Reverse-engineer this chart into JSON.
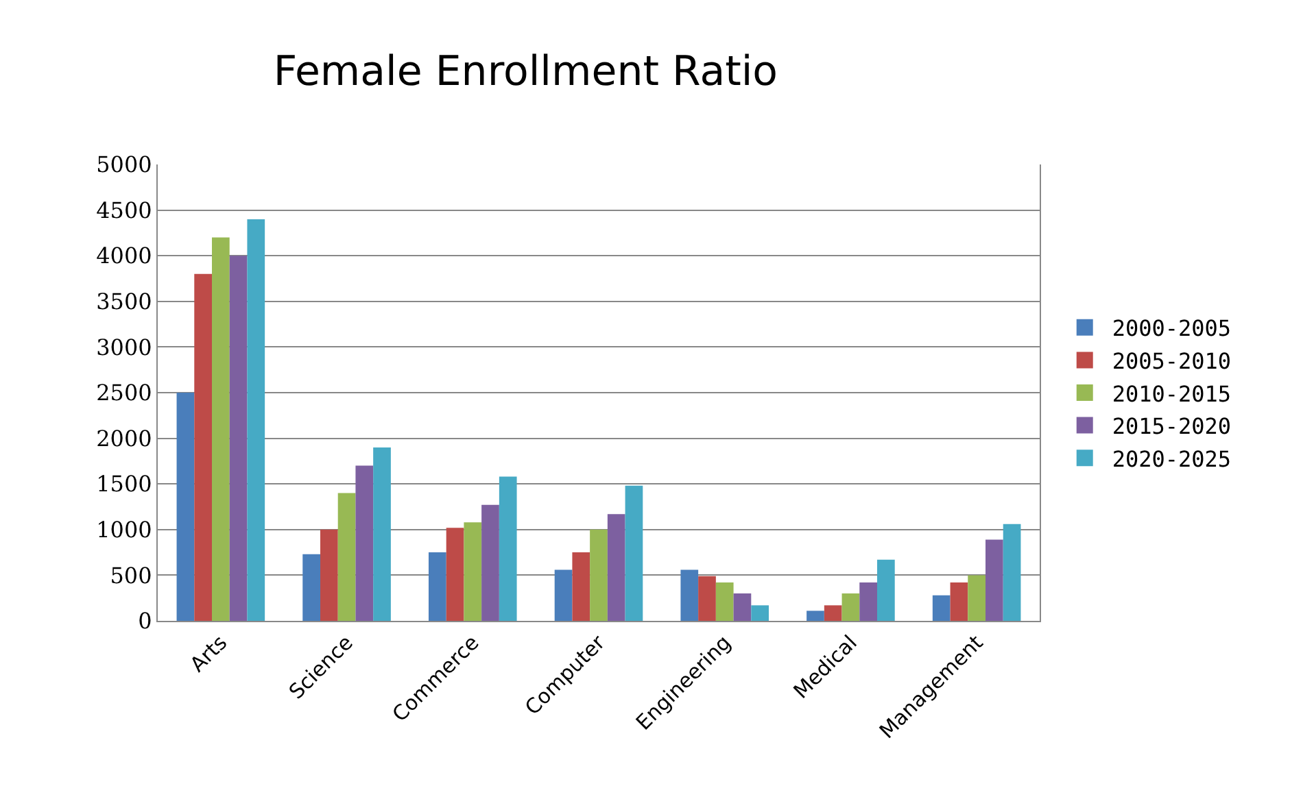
{
  "chart_data": {
    "type": "bar",
    "title": "Female Enrollment Ratio",
    "categories": [
      "Arts",
      "Science",
      "Commerce",
      "Computer",
      "Engineering",
      "Medical",
      "Management"
    ],
    "series": [
      {
        "name": "2000-2005",
        "color": "#4a7ebb",
        "values": [
          2500,
          730,
          750,
          560,
          560,
          110,
          280
        ]
      },
      {
        "name": "2005-2010",
        "color": "#be4b48",
        "values": [
          3800,
          1000,
          1020,
          750,
          490,
          170,
          420
        ]
      },
      {
        "name": "2010-2015",
        "color": "#98b954",
        "values": [
          4200,
          1400,
          1080,
          1000,
          420,
          300,
          500
        ]
      },
      {
        "name": "2015-2020",
        "color": "#7d60a0",
        "values": [
          4000,
          1700,
          1270,
          1170,
          300,
          420,
          890
        ]
      },
      {
        "name": "2020-2025",
        "color": "#46aac5",
        "values": [
          4400,
          1900,
          1580,
          1480,
          170,
          670,
          1060
        ]
      }
    ],
    "ylim": [
      0,
      5000
    ],
    "yticks": [
      0,
      500,
      1000,
      1500,
      2000,
      2500,
      3000,
      3500,
      4000,
      4500,
      5000
    ],
    "grid": "y",
    "legend": "right"
  }
}
